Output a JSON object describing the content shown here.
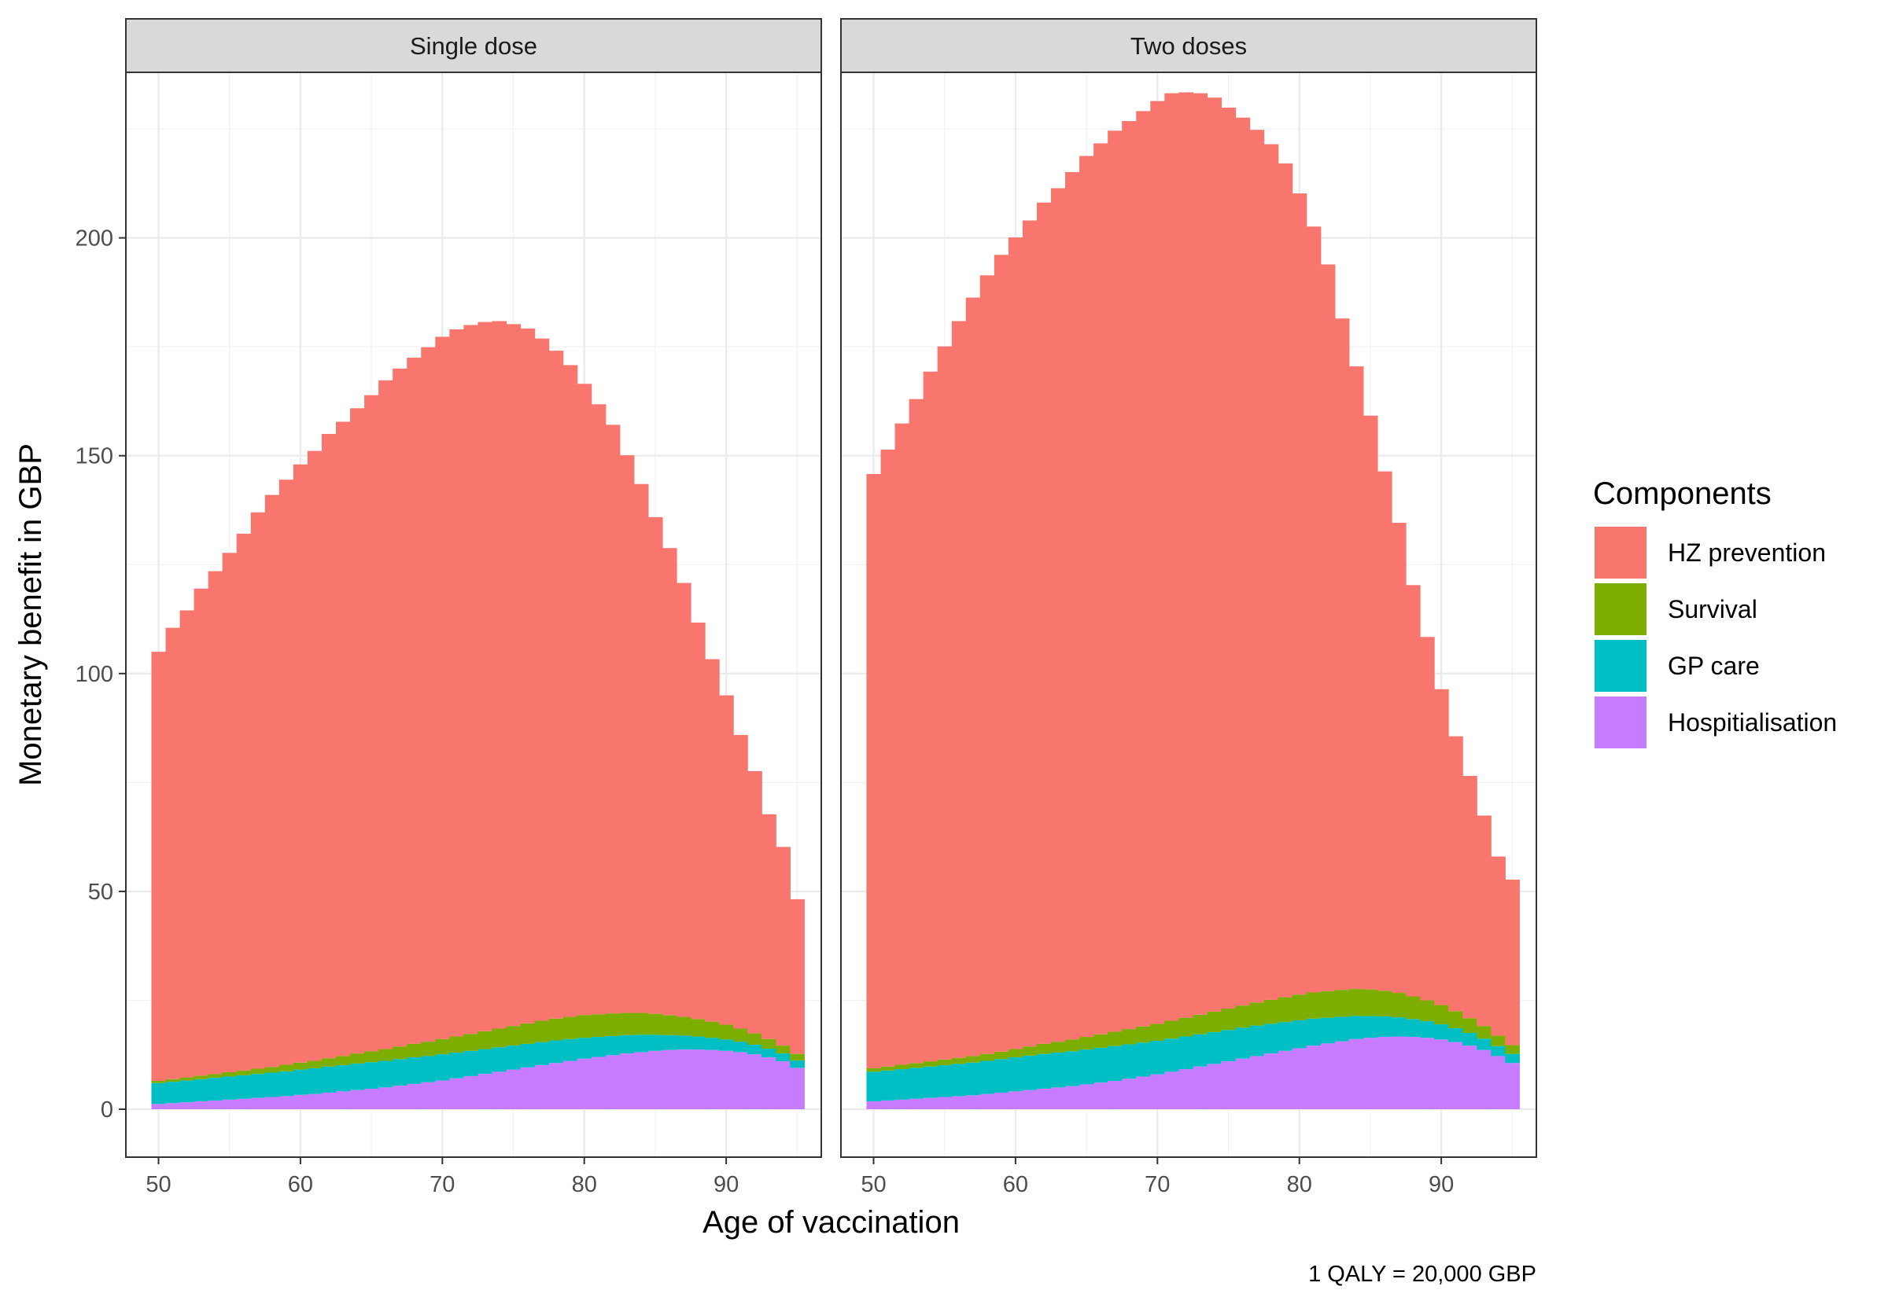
{
  "caption": "1 QALY = 20,000 GBP",
  "chart_data": {
    "type": "bar",
    "stacked": true,
    "xlabel": "Age of vaccination",
    "ylabel": "Monetary benefit in GBP",
    "xlim": [
      47.7,
      96.7
    ],
    "ylim": [
      -11,
      238
    ],
    "x_ticks": [
      50,
      60,
      70,
      80,
      90
    ],
    "y_ticks": [
      0,
      50,
      100,
      150,
      200
    ],
    "x_minor_gridlines": [
      55,
      65,
      75,
      85,
      95
    ],
    "y_minor_gridlines": [
      25,
      75,
      125,
      175,
      225
    ],
    "grid": true,
    "legend": {
      "title": "Components",
      "position": "right",
      "entries": [
        {
          "label": "HZ prevention",
          "color": "#F8766D"
        },
        {
          "label": "Survival",
          "color": "#7CAE00"
        },
        {
          "label": "GP care",
          "color": "#00BFC4"
        },
        {
          "label": "Hospitialisation",
          "color": "#C77CFF"
        }
      ]
    },
    "stack_order_bottom_to_top": [
      "Hospitialisation",
      "GP care",
      "Survival",
      "HZ prevention"
    ],
    "x": [
      50,
      51,
      52,
      53,
      54,
      55,
      56,
      57,
      58,
      59,
      60,
      61,
      62,
      63,
      64,
      65,
      66,
      67,
      68,
      69,
      70,
      71,
      72,
      73,
      74,
      75,
      76,
      77,
      78,
      79,
      80,
      81,
      82,
      83,
      84,
      85,
      86,
      87,
      88,
      89,
      90,
      91,
      92,
      93,
      94,
      95
    ],
    "panels": [
      {
        "title": "Single dose",
        "series": [
          {
            "name": "Hospitialisation",
            "values": [
              1.2,
              1.4,
              1.6,
              1.8,
              2.0,
              2.2,
              2.4,
              2.6,
              2.8,
              3.0,
              3.3,
              3.5,
              3.8,
              4.1,
              4.4,
              4.7,
              5.0,
              5.4,
              5.8,
              6.2,
              6.6,
              7.1,
              7.6,
              8.1,
              8.6,
              9.1,
              9.6,
              10.1,
              10.6,
              11.1,
              11.6,
              12.0,
              12.4,
              12.8,
              13.1,
              13.4,
              13.6,
              13.7,
              13.7,
              13.6,
              13.4,
              13.1,
              12.6,
              11.9,
              11.0,
              9.5
            ]
          },
          {
            "name": "GP care",
            "values": [
              4.8,
              4.9,
              5.0,
              5.1,
              5.2,
              5.3,
              5.4,
              5.5,
              5.6,
              5.7,
              5.8,
              5.9,
              6.0,
              6.0,
              6.1,
              6.1,
              6.1,
              6.1,
              6.1,
              6.0,
              6.0,
              5.9,
              5.8,
              5.7,
              5.6,
              5.5,
              5.4,
              5.3,
              5.2,
              5.0,
              4.8,
              4.6,
              4.4,
              4.2,
              4.0,
              3.7,
              3.4,
              3.2,
              3.0,
              2.8,
              2.6,
              2.4,
              2.2,
              2.0,
              1.8,
              1.7
            ]
          },
          {
            "name": "Survival",
            "values": [
              0.5,
              0.6,
              0.7,
              0.8,
              0.9,
              1.0,
              1.1,
              1.2,
              1.3,
              1.5,
              1.6,
              1.7,
              1.9,
              2.1,
              2.3,
              2.5,
              2.7,
              2.9,
              3.1,
              3.3,
              3.5,
              3.7,
              3.9,
              4.1,
              4.3,
              4.5,
              4.7,
              4.9,
              5.0,
              5.1,
              5.2,
              5.2,
              5.2,
              5.1,
              5.0,
              4.8,
              4.6,
              4.3,
              4.0,
              3.7,
              3.4,
              3.0,
              2.6,
              2.2,
              1.8,
              1.5
            ]
          },
          {
            "name": "HZ prevention",
            "values": [
              98.5,
              103.6,
              107.2,
              111.8,
              115.4,
              119.2,
              123.2,
              127.7,
              131.3,
              134.3,
              137.3,
              140.0,
              143.3,
              145.6,
              148.1,
              150.6,
              153.5,
              155.6,
              157.5,
              159.4,
              161.2,
              162.3,
              162.7,
              162.8,
              162.4,
              161.1,
              159.5,
              156.6,
              153.3,
              149.6,
              144.9,
              140.0,
              135.1,
              128.0,
              121.4,
              114.0,
              107.2,
              99.6,
              91.0,
              83.2,
              75.6,
              67.4,
              60.2,
              51.6,
              45.6,
              35.5
            ]
          }
        ]
      },
      {
        "title": "Two doses",
        "series": [
          {
            "name": "Hospitialisation",
            "values": [
              1.8,
              2.0,
              2.2,
              2.4,
              2.6,
              2.8,
              3.0,
              3.2,
              3.5,
              3.8,
              4.1,
              4.4,
              4.7,
              5.0,
              5.3,
              5.7,
              6.1,
              6.5,
              7.0,
              7.5,
              8.0,
              8.6,
              9.2,
              9.8,
              10.4,
              11.0,
              11.6,
              12.2,
              12.8,
              13.4,
              14.0,
              14.6,
              15.1,
              15.6,
              16.1,
              16.4,
              16.6,
              16.7,
              16.6,
              16.4,
              16.0,
              15.4,
              14.6,
              13.6,
              12.2,
              10.6
            ]
          },
          {
            "name": "GP care",
            "values": [
              6.8,
              6.9,
              7.0,
              7.1,
              7.2,
              7.3,
              7.4,
              7.5,
              7.6,
              7.7,
              7.8,
              7.9,
              8.0,
              8.0,
              8.0,
              8.0,
              8.0,
              8.0,
              7.9,
              7.8,
              7.7,
              7.6,
              7.5,
              7.4,
              7.3,
              7.2,
              7.1,
              7.0,
              6.8,
              6.6,
              6.4,
              6.2,
              5.9,
              5.6,
              5.3,
              5.0,
              4.7,
              4.4,
              4.1,
              3.8,
              3.5,
              3.2,
              2.9,
              2.6,
              2.3,
              2.1
            ]
          },
          {
            "name": "Survival",
            "values": [
              0.8,
              0.9,
              1.0,
              1.1,
              1.2,
              1.3,
              1.4,
              1.5,
              1.6,
              1.7,
              1.9,
              2.1,
              2.3,
              2.5,
              2.7,
              2.9,
              3.1,
              3.3,
              3.5,
              3.7,
              3.9,
              4.1,
              4.3,
              4.5,
              4.7,
              4.9,
              5.1,
              5.3,
              5.5,
              5.7,
              5.9,
              6.0,
              6.1,
              6.2,
              6.2,
              6.1,
              5.9,
              5.6,
              5.2,
              4.8,
              4.4,
              3.9,
              3.4,
              2.9,
              2.4,
              2.0
            ]
          },
          {
            "name": "HZ prevention",
            "values": [
              136.4,
              141.6,
              147.2,
              152.4,
              158.3,
              163.7,
              169.1,
              174.1,
              178.7,
              182.9,
              186.3,
              189.6,
              193.1,
              195.9,
              199.1,
              202.2,
              204.5,
              206.8,
              208.4,
              210.1,
              211.8,
              212.9,
              212.4,
              211.5,
              209.8,
              206.8,
              203.8,
              200.3,
              196.4,
              191.4,
              183.9,
              175.8,
              166.8,
              154.1,
              142.9,
              131.7,
              119.2,
              107.9,
              94.4,
              83.4,
              72.5,
              63.1,
              55.6,
              48.3,
              41.1,
              38.0
            ]
          }
        ]
      }
    ]
  }
}
